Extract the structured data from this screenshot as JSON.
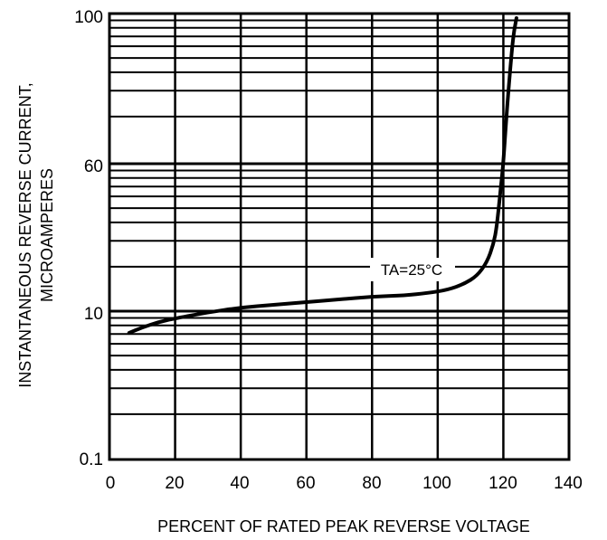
{
  "chart_data": {
    "type": "line",
    "xlabel": "PERCENT OF RATED PEAK REVERSE VOLTAGE",
    "ylabel_lines": [
      "INSTANTANEOUS  REVERSE  CURRENT,",
      "MICROAMPERES"
    ],
    "xlim": [
      0,
      140
    ],
    "x_ticks": [
      "0",
      "20",
      "40",
      "60",
      "80",
      "100",
      "120",
      "140"
    ],
    "y_ticks": [
      "100",
      "60",
      "10",
      "0.1"
    ],
    "grid": true,
    "annotation": "TA=25°C",
    "series": [
      {
        "x": [
          6,
          10,
          15,
          20,
          30,
          40,
          50,
          60,
          70,
          80,
          90,
          97,
          103,
          108,
          112,
          115,
          117,
          118,
          119,
          120,
          121,
          122,
          123,
          124
        ],
        "y": [
          8.3,
          8.7,
          9.1,
          9.4,
          9.9,
          10.4,
          10.7,
          11.0,
          11.3,
          11.6,
          11.8,
          12.2,
          12.6,
          13.3,
          14.6,
          16.4,
          19.7,
          23,
          36,
          55,
          70,
          83,
          93,
          100
        ]
      }
    ],
    "line_color": "#000000"
  }
}
